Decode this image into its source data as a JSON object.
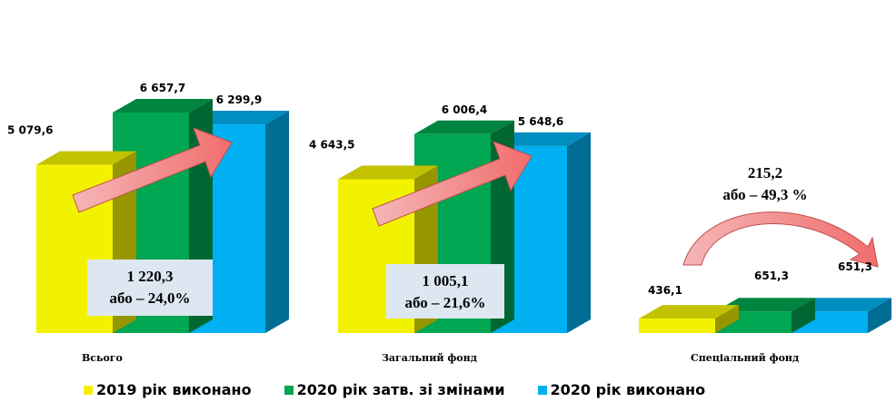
{
  "chart_data": {
    "type": "bar",
    "categories": [
      "Всього",
      "Загальний  фонд",
      "Спеціальний  фонд"
    ],
    "series": [
      {
        "name": "2019 рік виконано",
        "values": [
          5079.6,
          4643.5,
          436.1
        ],
        "labels": [
          "5 079,6",
          "4 643,5",
          "436,1"
        ],
        "color": "#f2f200"
      },
      {
        "name": "2020 рік затв. зі змінами",
        "values": [
          6657.7,
          6006.4,
          651.3
        ],
        "labels": [
          "6 657,7",
          "6 006,4",
          "651,3"
        ],
        "color": "#00a651"
      },
      {
        "name": "2020 рік виконано",
        "values": [
          6299.9,
          5648.6,
          651.3
        ],
        "labels": [
          "6 299,9",
          "5 648,6",
          "651,3"
        ],
        "color": "#00b0f0"
      }
    ],
    "annotations": [
      {
        "line1": "1 220,3",
        "line2": "або – 24,0%"
      },
      {
        "line1": "1 005,1",
        "line2": "або – 21,6%"
      },
      {
        "line1": "215,2",
        "line2": "або – 49,3 %"
      }
    ],
    "grid": false,
    "legend_position": "bottom"
  }
}
